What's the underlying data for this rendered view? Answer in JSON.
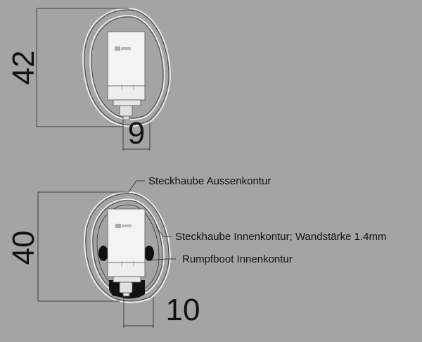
{
  "top_view": {
    "height_dimension": "42",
    "width_dimension": "9"
  },
  "bottom_view": {
    "height_dimension": "40",
    "width_dimension": "10",
    "labels": {
      "outer_contour": "Steckhaube Aussenkontur",
      "inner_contour": "Steckhaube Innenkontur; Wandstärke 1.4mm",
      "hull_inner_contour": "Rumpfboot Innenkontur"
    }
  },
  "colors": {
    "background": "#a4a4a4",
    "shell_outline": "#f2f2f2",
    "component_body": "#f0f0f0",
    "dimension_lines": "#222222"
  }
}
